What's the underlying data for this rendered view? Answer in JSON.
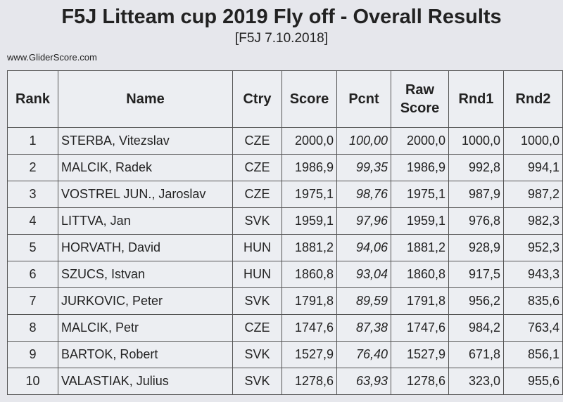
{
  "header": {
    "title": "F5J Litteam cup 2019 Fly off - Overall Results",
    "subtitle": "[F5J 7.10.2018]",
    "website": "www.GliderScore.com"
  },
  "table": {
    "columns": [
      "Rank",
      "Name",
      "Ctry",
      "Score",
      "Pcnt",
      "Raw Score",
      "Rnd1",
      "Rnd2"
    ],
    "rows": [
      [
        "1",
        "STERBA, Vitezslav",
        "CZE",
        "2000,0",
        "100,00",
        "2000,0",
        "1000,0",
        "1000,0"
      ],
      [
        "2",
        "MALCIK, Radek",
        "CZE",
        "1986,9",
        "99,35",
        "1986,9",
        "992,8",
        "994,1"
      ],
      [
        "3",
        "VOSTREL JUN., Jaroslav",
        "CZE",
        "1975,1",
        "98,76",
        "1975,1",
        "987,9",
        "987,2"
      ],
      [
        "4",
        "LITTVA, Jan",
        "SVK",
        "1959,1",
        "97,96",
        "1959,1",
        "976,8",
        "982,3"
      ],
      [
        "5",
        "HORVATH, David",
        "HUN",
        "1881,2",
        "94,06",
        "1881,2",
        "928,9",
        "952,3"
      ],
      [
        "6",
        "SZUCS, Istvan",
        "HUN",
        "1860,8",
        "93,04",
        "1860,8",
        "917,5",
        "943,3"
      ],
      [
        "7",
        "JURKOVIC, Peter",
        "SVK",
        "1791,8",
        "89,59",
        "1791,8",
        "956,2",
        "835,6"
      ],
      [
        "8",
        "MALCIK, Petr",
        "CZE",
        "1747,6",
        "87,38",
        "1747,6",
        "984,2",
        "763,4"
      ],
      [
        "9",
        "BARTOK, Robert",
        "SVK",
        "1527,9",
        "76,40",
        "1527,9",
        "671,8",
        "856,1"
      ],
      [
        "10",
        "VALASTIAK, Julius",
        "SVK",
        "1278,6",
        "63,93",
        "1278,6",
        "323,0",
        "955,6"
      ]
    ]
  }
}
